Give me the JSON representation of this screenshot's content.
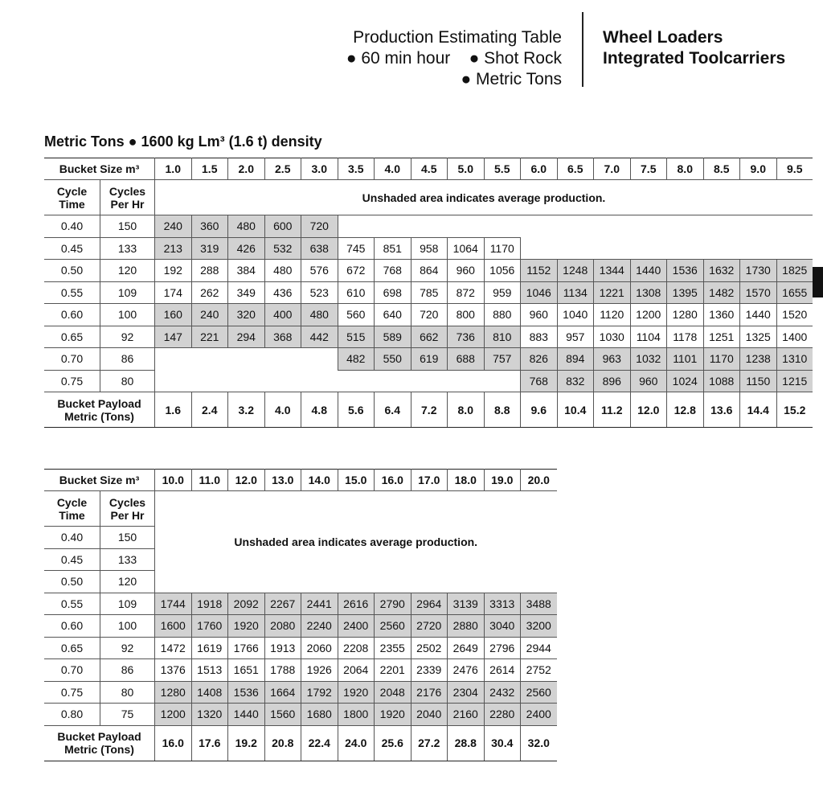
{
  "header": {
    "title_lines": [
      "Production Estimating Table",
      "● 60 min hour",
      "● Shot Rock",
      "● Metric Tons"
    ],
    "product_lines": [
      "Wheel Loaders",
      "Integrated Toolcarriers"
    ]
  },
  "section_title": "Metric Tons ● 1600 kg Lm³ (1.6 t) density",
  "tables": [
    {
      "bucket_size_label": "Bucket Size m³",
      "bucket_sizes": [
        "1.0",
        "1.5",
        "2.0",
        "2.5",
        "3.0",
        "3.5",
        "4.0",
        "4.5",
        "5.0",
        "5.5",
        "6.0",
        "6.5",
        "7.0",
        "7.5",
        "8.0",
        "8.5",
        "9.0",
        "9.5"
      ],
      "cycle_time_label": "Cycle Time",
      "cycles_per_hr_label": "Cycles Per Hr",
      "note": "Unshaded area indicates average production.",
      "rows": [
        {
          "cycle_time": "0.40",
          "cycles_per_hr": "150",
          "values": [
            "240",
            "360",
            "480",
            "600",
            "720",
            null,
            null,
            null,
            null,
            null,
            null,
            null,
            null,
            null,
            null,
            null,
            null,
            null
          ],
          "shaded": [
            true,
            true,
            true,
            true,
            true,
            false,
            false,
            false,
            false,
            false,
            false,
            false,
            false,
            false,
            false,
            false,
            false,
            false
          ]
        },
        {
          "cycle_time": "0.45",
          "cycles_per_hr": "133",
          "values": [
            "213",
            "319",
            "426",
            "532",
            "638",
            "745",
            "851",
            "958",
            "1064",
            "1170",
            null,
            null,
            null,
            null,
            null,
            null,
            null,
            null
          ],
          "shaded": [
            true,
            true,
            true,
            true,
            true,
            false,
            false,
            false,
            false,
            false,
            false,
            false,
            false,
            false,
            false,
            false,
            false,
            false
          ]
        },
        {
          "cycle_time": "0.50",
          "cycles_per_hr": "120",
          "values": [
            "192",
            "288",
            "384",
            "480",
            "576",
            "672",
            "768",
            "864",
            "960",
            "1056",
            "1152",
            "1248",
            "1344",
            "1440",
            "1536",
            "1632",
            "1730",
            "1825"
          ],
          "shaded": [
            false,
            false,
            false,
            false,
            false,
            false,
            false,
            false,
            false,
            false,
            true,
            true,
            true,
            true,
            true,
            true,
            true,
            true
          ]
        },
        {
          "cycle_time": "0.55",
          "cycles_per_hr": "109",
          "values": [
            "174",
            "262",
            "349",
            "436",
            "523",
            "610",
            "698",
            "785",
            "872",
            "959",
            "1046",
            "1134",
            "1221",
            "1308",
            "1395",
            "1482",
            "1570",
            "1655"
          ],
          "shaded": [
            false,
            false,
            false,
            false,
            false,
            false,
            false,
            false,
            false,
            false,
            true,
            true,
            true,
            true,
            true,
            true,
            true,
            true
          ]
        },
        {
          "cycle_time": "0.60",
          "cycles_per_hr": "100",
          "values": [
            "160",
            "240",
            "320",
            "400",
            "480",
            "560",
            "640",
            "720",
            "800",
            "880",
            "960",
            "1040",
            "1120",
            "1200",
            "1280",
            "1360",
            "1440",
            "1520"
          ],
          "shaded": [
            true,
            true,
            true,
            true,
            true,
            false,
            false,
            false,
            false,
            false,
            false,
            false,
            false,
            false,
            false,
            false,
            false,
            false
          ]
        },
        {
          "cycle_time": "0.65",
          "cycles_per_hr": "92",
          "values": [
            "147",
            "221",
            "294",
            "368",
            "442",
            "515",
            "589",
            "662",
            "736",
            "810",
            "883",
            "957",
            "1030",
            "1104",
            "1178",
            "1251",
            "1325",
            "1400"
          ],
          "shaded": [
            true,
            true,
            true,
            true,
            true,
            true,
            true,
            true,
            true,
            true,
            false,
            false,
            false,
            false,
            false,
            false,
            false,
            false
          ]
        },
        {
          "cycle_time": "0.70",
          "cycles_per_hr": "86",
          "values": [
            null,
            null,
            null,
            null,
            null,
            "482",
            "550",
            "619",
            "688",
            "757",
            "826",
            "894",
            "963",
            "1032",
            "1101",
            "1170",
            "1238",
            "1310"
          ],
          "shaded": [
            false,
            false,
            false,
            false,
            false,
            true,
            true,
            true,
            true,
            true,
            true,
            true,
            true,
            true,
            true,
            true,
            true,
            true
          ]
        },
        {
          "cycle_time": "0.75",
          "cycles_per_hr": "80",
          "values": [
            null,
            null,
            null,
            null,
            null,
            null,
            null,
            null,
            null,
            null,
            "768",
            "832",
            "896",
            "960",
            "1024",
            "1088",
            "1150",
            "1215"
          ],
          "shaded": [
            false,
            false,
            false,
            false,
            false,
            false,
            false,
            false,
            false,
            false,
            true,
            true,
            true,
            true,
            true,
            true,
            true,
            true
          ]
        }
      ],
      "payload_label": "Bucket Payload Metric (Tons)",
      "payload": [
        "1.6",
        "2.4",
        "3.2",
        "4.0",
        "4.8",
        "5.6",
        "6.4",
        "7.2",
        "8.0",
        "8.8",
        "9.6",
        "10.4",
        "11.2",
        "12.0",
        "12.8",
        "13.6",
        "14.4",
        "15.2"
      ]
    },
    {
      "bucket_size_label": "Bucket Size m³",
      "bucket_sizes": [
        "10.0",
        "11.0",
        "12.0",
        "13.0",
        "14.0",
        "15.0",
        "16.0",
        "17.0",
        "18.0",
        "19.0",
        "20.0"
      ],
      "cycle_time_label": "Cycle Time",
      "cycles_per_hr_label": "Cycles Per Hr",
      "note": "Unshaded area indicates average production.",
      "rows": [
        {
          "cycle_time": "0.40",
          "cycles_per_hr": "150",
          "values": [
            null,
            null,
            null,
            null,
            null,
            null,
            null,
            null,
            null,
            null,
            null
          ],
          "shaded": [
            false,
            false,
            false,
            false,
            false,
            false,
            false,
            false,
            false,
            false,
            false
          ]
        },
        {
          "cycle_time": "0.45",
          "cycles_per_hr": "133",
          "values": [
            null,
            null,
            null,
            null,
            null,
            null,
            null,
            null,
            null,
            null,
            null
          ],
          "shaded": [
            false,
            false,
            false,
            false,
            false,
            false,
            false,
            false,
            false,
            false,
            false
          ]
        },
        {
          "cycle_time": "0.50",
          "cycles_per_hr": "120",
          "values": [
            null,
            null,
            null,
            null,
            null,
            null,
            null,
            null,
            null,
            null,
            null
          ],
          "shaded": [
            false,
            false,
            false,
            false,
            false,
            false,
            false,
            false,
            false,
            false,
            false
          ]
        },
        {
          "cycle_time": "0.55",
          "cycles_per_hr": "109",
          "values": [
            "1744",
            "1918",
            "2092",
            "2267",
            "2441",
            "2616",
            "2790",
            "2964",
            "3139",
            "3313",
            "3488"
          ],
          "shaded": [
            true,
            true,
            true,
            true,
            true,
            true,
            true,
            true,
            true,
            true,
            true
          ]
        },
        {
          "cycle_time": "0.60",
          "cycles_per_hr": "100",
          "values": [
            "1600",
            "1760",
            "1920",
            "2080",
            "2240",
            "2400",
            "2560",
            "2720",
            "2880",
            "3040",
            "3200"
          ],
          "shaded": [
            true,
            true,
            true,
            true,
            true,
            true,
            true,
            true,
            true,
            true,
            true
          ]
        },
        {
          "cycle_time": "0.65",
          "cycles_per_hr": "92",
          "values": [
            "1472",
            "1619",
            "1766",
            "1913",
            "2060",
            "2208",
            "2355",
            "2502",
            "2649",
            "2796",
            "2944"
          ],
          "shaded": [
            false,
            false,
            false,
            false,
            false,
            false,
            false,
            false,
            false,
            false,
            false
          ]
        },
        {
          "cycle_time": "0.70",
          "cycles_per_hr": "86",
          "values": [
            "1376",
            "1513",
            "1651",
            "1788",
            "1926",
            "2064",
            "2201",
            "2339",
            "2476",
            "2614",
            "2752"
          ],
          "shaded": [
            false,
            false,
            false,
            false,
            false,
            false,
            false,
            false,
            false,
            false,
            false
          ]
        },
        {
          "cycle_time": "0.75",
          "cycles_per_hr": "80",
          "values": [
            "1280",
            "1408",
            "1536",
            "1664",
            "1792",
            "1920",
            "2048",
            "2176",
            "2304",
            "2432",
            "2560"
          ],
          "shaded": [
            true,
            true,
            true,
            true,
            true,
            true,
            true,
            true,
            true,
            true,
            true
          ]
        },
        {
          "cycle_time": "0.80",
          "cycles_per_hr": "75",
          "values": [
            "1200",
            "1320",
            "1440",
            "1560",
            "1680",
            "1800",
            "1920",
            "2040",
            "2160",
            "2280",
            "2400"
          ],
          "shaded": [
            true,
            true,
            true,
            true,
            true,
            true,
            true,
            true,
            true,
            true,
            true
          ]
        }
      ],
      "payload_label": "Bucket Payload Metric (Tons)",
      "payload": [
        "16.0",
        "17.6",
        "19.2",
        "20.8",
        "22.4",
        "24.0",
        "25.6",
        "27.2",
        "28.8",
        "30.4",
        "32.0"
      ]
    }
  ]
}
